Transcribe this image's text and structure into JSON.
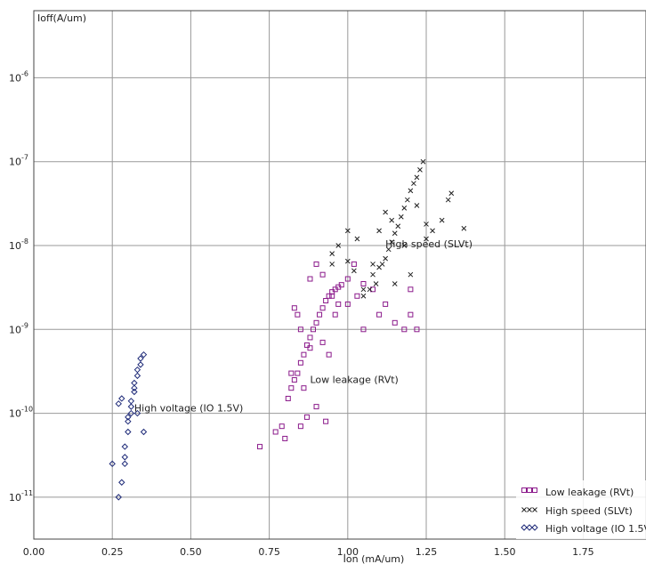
{
  "chart_data": {
    "type": "scatter",
    "title": "",
    "xlabel": "Ion (mA/um)",
    "ylabel": "Ioff(A/um)",
    "xlim": [
      0,
      1.95
    ],
    "ylog": true,
    "ylim_exp": [
      -11.5,
      -5.2
    ],
    "grid": true,
    "legend_placement": "bottom-right",
    "x_ticks": [
      "0.00",
      "0.25",
      "0.50",
      "0.75",
      "1.00",
      "1.25",
      "1.50",
      "1.75"
    ],
    "y_ticks": [
      {
        "mantissa": "10",
        "exponent": "-6"
      },
      {
        "mantissa": "10",
        "exponent": "-7"
      },
      {
        "mantissa": "10",
        "exponent": "-8"
      },
      {
        "mantissa": "10",
        "exponent": "-9"
      },
      {
        "mantissa": "10",
        "exponent": "-10"
      },
      {
        "mantissa": "10",
        "exponent": "-11"
      }
    ],
    "series": [
      {
        "name": "Low leakage (RVt)",
        "marker": "square",
        "color": "#8b1a8b",
        "annotation": "Low leakage (RVt)",
        "x": [
          0.72,
          0.77,
          0.79,
          0.81,
          0.82,
          0.83,
          0.84,
          0.85,
          0.86,
          0.87,
          0.88,
          0.89,
          0.9,
          0.91,
          0.92,
          0.93,
          0.94,
          0.95,
          0.96,
          0.97,
          0.98,
          0.83,
          0.84,
          0.85,
          0.88,
          0.9,
          0.93,
          0.96,
          1.0,
          1.02,
          1.03,
          1.05,
          1.08,
          1.1,
          1.12,
          1.15,
          1.18,
          1.2,
          1.05,
          0.85,
          0.87,
          0.8,
          0.82,
          0.86,
          0.88,
          0.92,
          0.94,
          1.0,
          1.2,
          1.22,
          0.9,
          0.92,
          0.95,
          0.97
        ],
        "y": [
          4e-11,
          6e-11,
          7e-11,
          1.5e-10,
          2e-10,
          2.5e-10,
          3e-10,
          4e-10,
          5e-10,
          6.5e-10,
          8e-10,
          1e-09,
          1.2e-09,
          1.5e-09,
          1.8e-09,
          2.2e-09,
          2.5e-09,
          2.8e-09,
          3e-09,
          3.2e-09,
          3.4e-09,
          1.8e-09,
          1.5e-09,
          1e-09,
          4e-09,
          1.2e-10,
          8e-11,
          1.5e-09,
          4e-09,
          6e-09,
          2.5e-09,
          1e-09,
          3e-09,
          1.5e-09,
          2e-09,
          1.2e-09,
          1e-09,
          3e-09,
          3.5e-09,
          7e-11,
          9e-11,
          5e-11,
          3e-10,
          2e-10,
          6e-10,
          7e-10,
          5e-10,
          2e-09,
          1.5e-09,
          1e-09,
          6e-09,
          4.5e-09,
          2.5e-09,
          2e-09
        ]
      },
      {
        "name": "High speed (SLVt)",
        "marker": "x",
        "color": "#222222",
        "annotation": "High speed (SLVt)",
        "x": [
          0.95,
          1.0,
          1.02,
          1.05,
          1.07,
          1.08,
          1.09,
          1.1,
          1.11,
          1.12,
          1.13,
          1.14,
          1.15,
          1.16,
          1.17,
          1.18,
          1.19,
          1.2,
          1.21,
          1.22,
          1.23,
          1.24,
          1.25,
          1.27,
          1.3,
          1.32,
          1.33,
          1.37,
          1.25,
          1.2,
          1.15,
          1.1,
          1.08,
          1.05,
          1.03,
          1.0,
          0.97,
          0.95,
          1.12,
          1.14,
          1.18,
          1.22
        ],
        "y": [
          6e-09,
          6.5e-09,
          5e-09,
          2.5e-09,
          3e-09,
          4.5e-09,
          3.5e-09,
          5.5e-09,
          6e-09,
          7e-09,
          9e-09,
          1.1e-08,
          1.4e-08,
          1.7e-08,
          2.2e-08,
          2.8e-08,
          3.5e-08,
          4.5e-08,
          5.5e-08,
          6.5e-08,
          8e-08,
          1e-07,
          1.2e-08,
          1.5e-08,
          2e-08,
          3.5e-08,
          4.2e-08,
          1.6e-08,
          1.8e-08,
          4.5e-09,
          3.5e-09,
          1.5e-08,
          6e-09,
          3e-09,
          1.2e-08,
          1.5e-08,
          1e-08,
          8e-09,
          2.5e-08,
          2e-08,
          1e-08,
          3e-08
        ]
      },
      {
        "name": "High voltage (IO 1.5V)",
        "marker": "diamond",
        "color": "#1e2a78",
        "annotation": "High voltage (IO 1.5V)",
        "x": [
          0.25,
          0.27,
          0.28,
          0.29,
          0.29,
          0.3,
          0.3,
          0.31,
          0.31,
          0.32,
          0.32,
          0.33,
          0.33,
          0.34,
          0.34,
          0.35,
          0.27,
          0.28,
          0.35,
          0.33,
          0.3,
          0.29,
          0.31,
          0.32
        ],
        "y": [
          2.5e-11,
          1e-11,
          1.5e-11,
          2.5e-11,
          4e-11,
          6e-11,
          8e-11,
          1e-10,
          1.4e-10,
          1.8e-10,
          2.3e-10,
          2.8e-10,
          3.3e-10,
          3.8e-10,
          4.5e-10,
          5e-10,
          1.3e-10,
          1.5e-10,
          6e-11,
          1e-10,
          9e-11,
          3e-11,
          1.2e-10,
          2e-10
        ]
      }
    ]
  }
}
